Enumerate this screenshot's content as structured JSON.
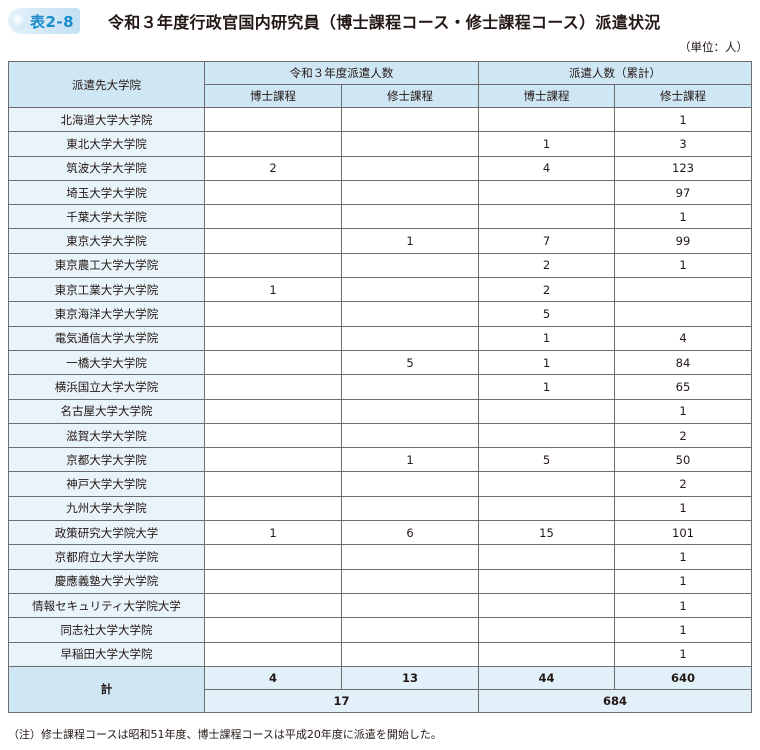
{
  "title": {
    "badge": "表2-8",
    "text": "令和３年度行政官国内研究員（博士課程コース・修士課程コース）派遣状況"
  },
  "unit": "（単位：人）",
  "table": {
    "header_col1": "派遣先大学院",
    "group1": "令和３年度派遣人数",
    "group2": "派遣人数（累計）",
    "sub_doctor": "博士課程",
    "sub_master": "修士課程",
    "rows": [
      {
        "name": "北海道大学大学院",
        "cur_doc": "",
        "cur_mas": "",
        "cum_doc": "",
        "cum_mas": "1"
      },
      {
        "name": "東北大学大学院",
        "cur_doc": "",
        "cur_mas": "",
        "cum_doc": "1",
        "cum_mas": "3"
      },
      {
        "name": "筑波大学大学院",
        "cur_doc": "2",
        "cur_mas": "",
        "cum_doc": "4",
        "cum_mas": "123"
      },
      {
        "name": "埼玉大学大学院",
        "cur_doc": "",
        "cur_mas": "",
        "cum_doc": "",
        "cum_mas": "97"
      },
      {
        "name": "千葉大学大学院",
        "cur_doc": "",
        "cur_mas": "",
        "cum_doc": "",
        "cum_mas": "1"
      },
      {
        "name": "東京大学大学院",
        "cur_doc": "",
        "cur_mas": "1",
        "cum_doc": "7",
        "cum_mas": "99"
      },
      {
        "name": "東京農工大学大学院",
        "cur_doc": "",
        "cur_mas": "",
        "cum_doc": "2",
        "cum_mas": "1"
      },
      {
        "name": "東京工業大学大学院",
        "cur_doc": "1",
        "cur_mas": "",
        "cum_doc": "2",
        "cum_mas": ""
      },
      {
        "name": "東京海洋大学大学院",
        "cur_doc": "",
        "cur_mas": "",
        "cum_doc": "5",
        "cum_mas": ""
      },
      {
        "name": "電気通信大学大学院",
        "cur_doc": "",
        "cur_mas": "",
        "cum_doc": "1",
        "cum_mas": "4"
      },
      {
        "name": "一橋大学大学院",
        "cur_doc": "",
        "cur_mas": "5",
        "cum_doc": "1",
        "cum_mas": "84"
      },
      {
        "name": "横浜国立大学大学院",
        "cur_doc": "",
        "cur_mas": "",
        "cum_doc": "1",
        "cum_mas": "65"
      },
      {
        "name": "名古屋大学大学院",
        "cur_doc": "",
        "cur_mas": "",
        "cum_doc": "",
        "cum_mas": "1"
      },
      {
        "name": "滋賀大学大学院",
        "cur_doc": "",
        "cur_mas": "",
        "cum_doc": "",
        "cum_mas": "2"
      },
      {
        "name": "京都大学大学院",
        "cur_doc": "",
        "cur_mas": "1",
        "cum_doc": "5",
        "cum_mas": "50"
      },
      {
        "name": "神戸大学大学院",
        "cur_doc": "",
        "cur_mas": "",
        "cum_doc": "",
        "cum_mas": "2"
      },
      {
        "name": "九州大学大学院",
        "cur_doc": "",
        "cur_mas": "",
        "cum_doc": "",
        "cum_mas": "1"
      },
      {
        "name": "政策研究大学院大学",
        "cur_doc": "1",
        "cur_mas": "6",
        "cum_doc": "15",
        "cum_mas": "101"
      },
      {
        "name": "京都府立大学大学院",
        "cur_doc": "",
        "cur_mas": "",
        "cum_doc": "",
        "cum_mas": "1"
      },
      {
        "name": "慶應義塾大学大学院",
        "cur_doc": "",
        "cur_mas": "",
        "cum_doc": "",
        "cum_mas": "1"
      },
      {
        "name": "情報セキュリティ大学院大学",
        "cur_doc": "",
        "cur_mas": "",
        "cum_doc": "",
        "cum_mas": "1"
      },
      {
        "name": "同志社大学大学院",
        "cur_doc": "",
        "cur_mas": "",
        "cum_doc": "",
        "cum_mas": "1"
      },
      {
        "name": "早稲田大学大学院",
        "cur_doc": "",
        "cur_mas": "",
        "cum_doc": "",
        "cum_mas": "1"
      }
    ],
    "total": {
      "label": "計",
      "cur_doc": "4",
      "cur_mas": "13",
      "cum_doc": "44",
      "cum_mas": "640",
      "cur_total": "17",
      "cum_total": "684"
    }
  },
  "note": "（注）修士課程コースは昭和51年度、博士課程コースは平成20年度に派遣を開始した。"
}
